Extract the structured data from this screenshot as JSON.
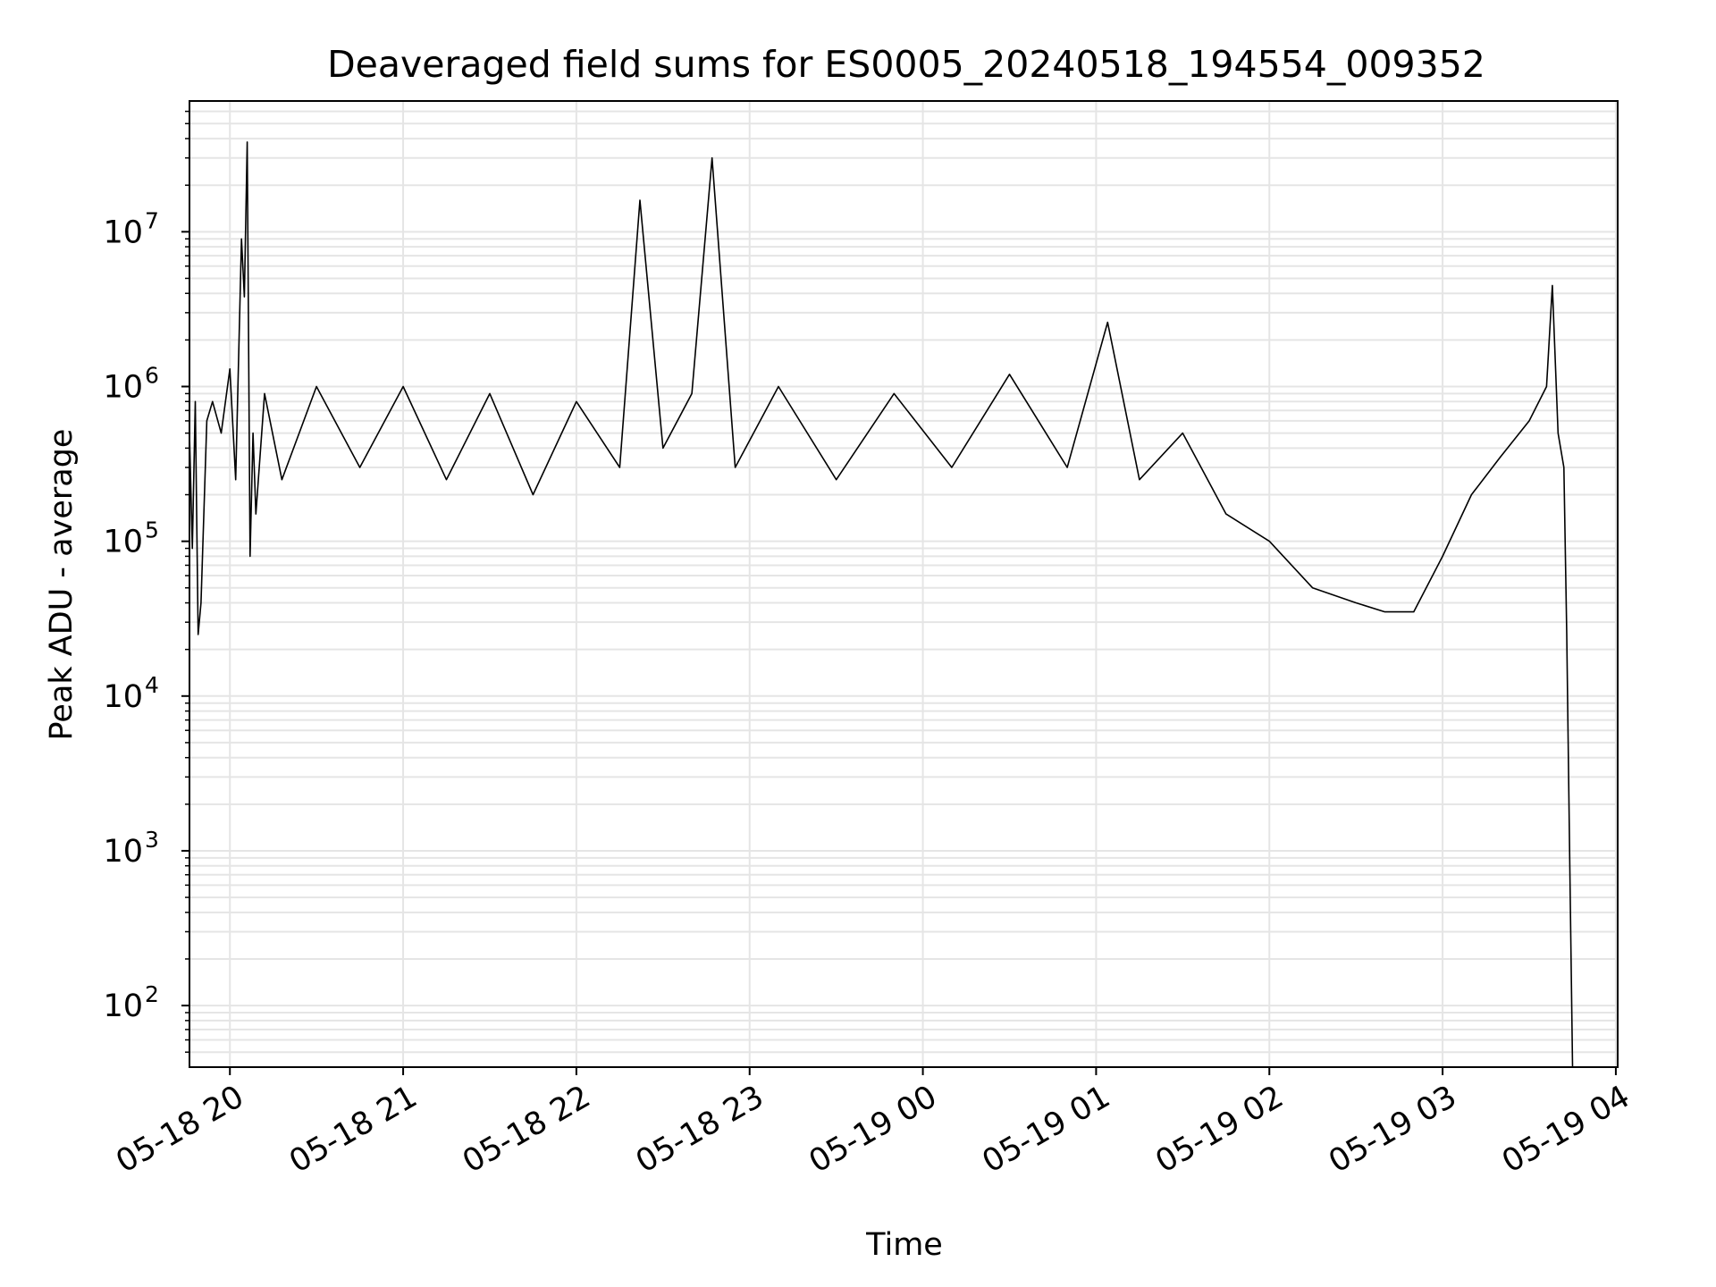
{
  "chart_data": {
    "type": "line",
    "title": "Deaveraged field sums for ES0005_20240518_194554_009352",
    "xlabel": "Time",
    "ylabel": "Peak ADU - average",
    "yscale": "log",
    "grid": true,
    "legend": "none",
    "xlim": [
      "2024-05-18 19:46",
      "2024-05-19 04:00"
    ],
    "ylim": [
      40,
      70000000
    ],
    "x_ticks": [
      "05-18 20",
      "05-18 21",
      "05-18 22",
      "05-18 23",
      "05-19 00",
      "05-19 01",
      "05-19 02",
      "05-19 03",
      "05-19 04"
    ],
    "y_ticks": [
      {
        "base": "10",
        "exp": "2"
      },
      {
        "base": "10",
        "exp": "3"
      },
      {
        "base": "10",
        "exp": "4"
      },
      {
        "base": "10",
        "exp": "5"
      },
      {
        "base": "10",
        "exp": "6"
      },
      {
        "base": "10",
        "exp": "7"
      }
    ],
    "colors": {
      "line": "#000000",
      "grid": "#e5e5e5"
    },
    "series": [
      {
        "x": [
          "2024-05-18 19:46",
          "2024-05-18 19:47",
          "2024-05-18 19:48",
          "2024-05-18 19:49",
          "2024-05-18 19:50",
          "2024-05-18 19:52",
          "2024-05-18 19:54",
          "2024-05-18 19:57",
          "2024-05-18 20:00",
          "2024-05-18 20:02",
          "2024-05-18 20:04",
          "2024-05-18 20:05",
          "2024-05-18 20:06",
          "2024-05-18 20:07",
          "2024-05-18 20:08",
          "2024-05-18 20:09",
          "2024-05-18 20:12",
          "2024-05-18 20:18",
          "2024-05-18 20:30",
          "2024-05-18 20:45",
          "2024-05-18 21:00",
          "2024-05-18 21:15",
          "2024-05-18 21:30",
          "2024-05-18 21:45",
          "2024-05-18 22:00",
          "2024-05-18 22:15",
          "2024-05-18 22:22",
          "2024-05-18 22:30",
          "2024-05-18 22:40",
          "2024-05-18 22:47",
          "2024-05-18 22:55",
          "2024-05-18 23:10",
          "2024-05-18 23:30",
          "2024-05-18 23:50",
          "2024-05-19 00:10",
          "2024-05-19 00:30",
          "2024-05-19 00:50",
          "2024-05-19 01:04",
          "2024-05-19 01:15",
          "2024-05-19 01:30",
          "2024-05-19 01:45",
          "2024-05-19 02:00",
          "2024-05-19 02:15",
          "2024-05-19 02:30",
          "2024-05-19 02:40",
          "2024-05-19 02:50",
          "2024-05-19 03:00",
          "2024-05-19 03:10",
          "2024-05-19 03:20",
          "2024-05-19 03:30",
          "2024-05-19 03:36",
          "2024-05-19 03:38",
          "2024-05-19 03:40",
          "2024-05-19 03:42",
          "2024-05-19 03:43",
          "2024-05-19 03:44",
          "2024-05-19 03:45"
        ],
        "y": [
          500000,
          90000,
          800000,
          25000,
          40000,
          600000,
          800000,
          500000,
          1300000,
          250000,
          9000000,
          3800000,
          38000000,
          80000,
          500000,
          150000,
          900000,
          250000,
          1000000,
          300000,
          1000000,
          250000,
          900000,
          200000,
          800000,
          300000,
          16000000,
          400000,
          900000,
          30000000,
          300000,
          1000000,
          250000,
          900000,
          300000,
          1200000,
          300000,
          2600000,
          250000,
          500000,
          150000,
          100000,
          50000,
          40000,
          35000,
          35000,
          80000,
          200000,
          350000,
          600000,
          1000000,
          4500000,
          500000,
          300000,
          25000,
          1000,
          40
        ]
      }
    ]
  }
}
